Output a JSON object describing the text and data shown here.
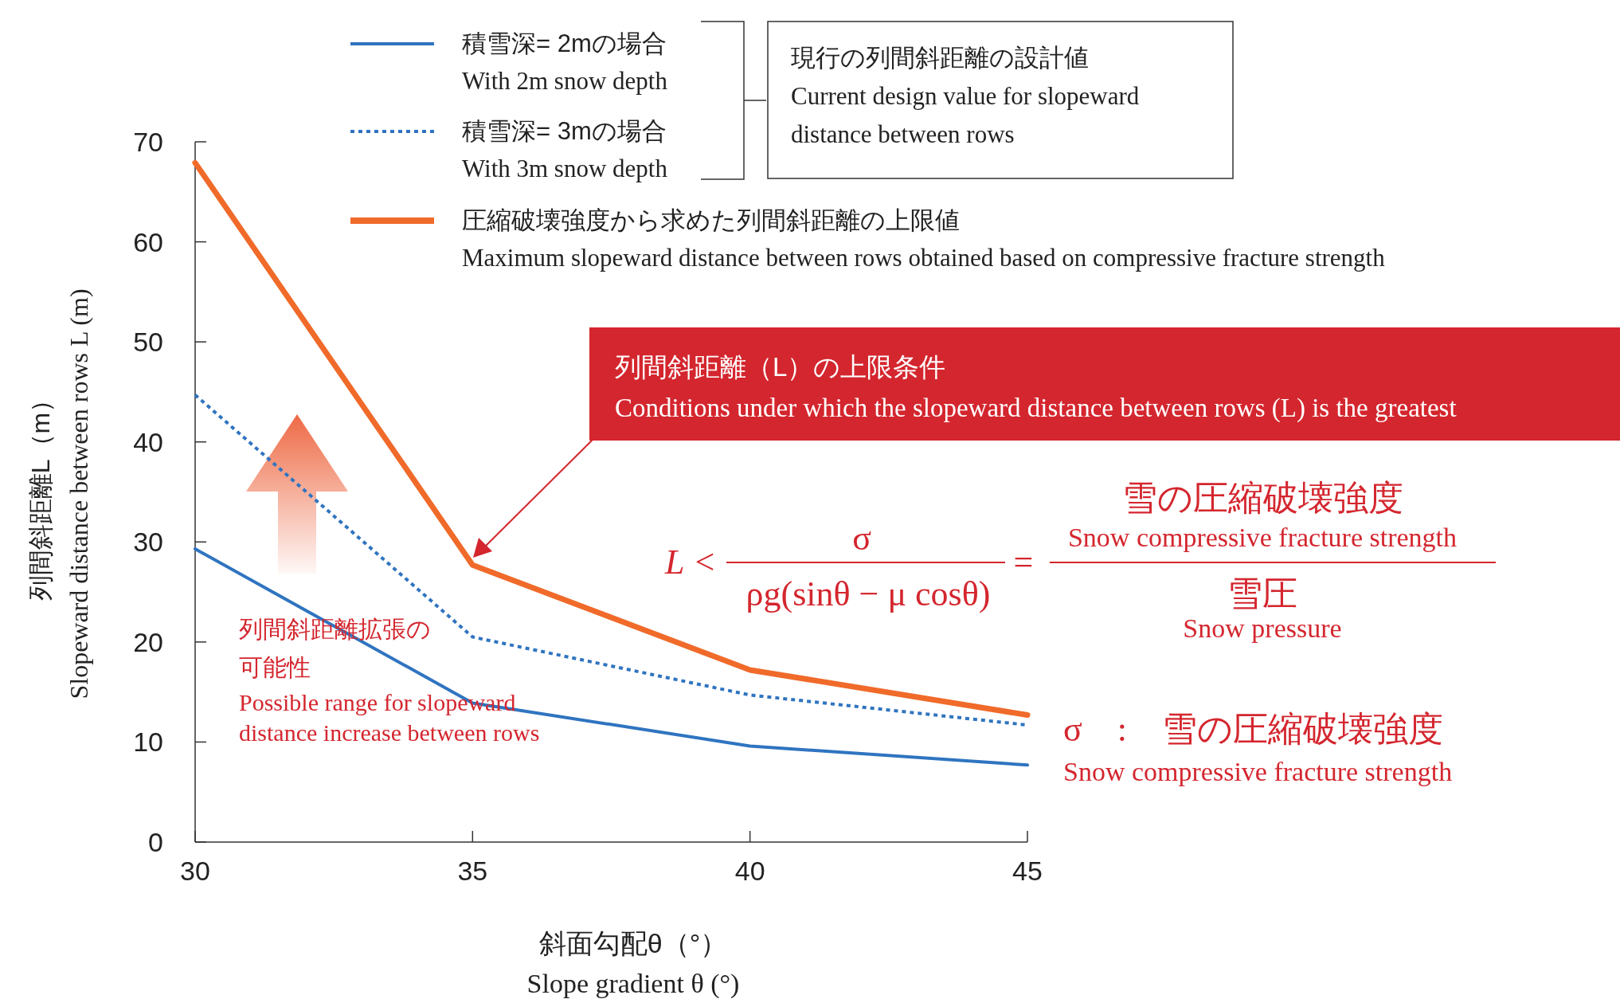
{
  "chart_data": {
    "type": "line",
    "x": [
      30,
      35,
      40,
      45
    ],
    "series": [
      {
        "name": "積雪深= 2mの場合\nWith 2m snow depth",
        "color": "#2f74c0",
        "values": [
          29.3,
          13.9,
          9.6,
          7.7
        ],
        "line_style": "solid"
      },
      {
        "name": "積雪深= 3mの場合\nWith 3m snow depth",
        "color": "#2f74c0",
        "values": [
          44.7,
          20.5,
          14.7,
          11.7
        ],
        "line_style": "dotted"
      },
      {
        "name": "圧縮破壊強度から求めた列間斜距離の上限値\nMaximum slopeward distance between rows obtained based on compressive fracture strength",
        "color": "#f06a2a",
        "values": [
          67.9,
          27.7,
          17.2,
          12.7
        ],
        "line_style": "solid"
      }
    ],
    "xlim": [
      30,
      45
    ],
    "ylim": [
      0,
      70
    ],
    "xticks": [
      30,
      35,
      40,
      45
    ],
    "yticks": [
      0,
      10,
      20,
      30,
      40,
      50,
      60,
      70
    ],
    "xlabel": "斜面勾配θ（°）\nSlope gradient θ (°)",
    "ylabel": "列間斜距離L（m）\nSlopeward distance between rows L (m)",
    "legend": "top",
    "grid": false,
    "marker": "none",
    "annotations": [
      "現行の列間斜距離の設計値\nCurrent design value for slopeward\ndistance between rows",
      "列間斜距離（L）の上限条件\nConditions under which the slopeward distance between rows (L) is the greatest",
      "L <",
      "σ\nρg(sinθ − μ cosθ)",
      "=",
      "雪の圧縮破壊強度\nSnow compressive fracture strength\n雪圧\nSnow pressure",
      "σ　:　雪の圧縮破壊強度\nSnow compressive fracture strength",
      "列間斜距離拡張の",
      "可能性",
      "Possible range for slopeward\ndistance increase between rows"
    ]
  }
}
